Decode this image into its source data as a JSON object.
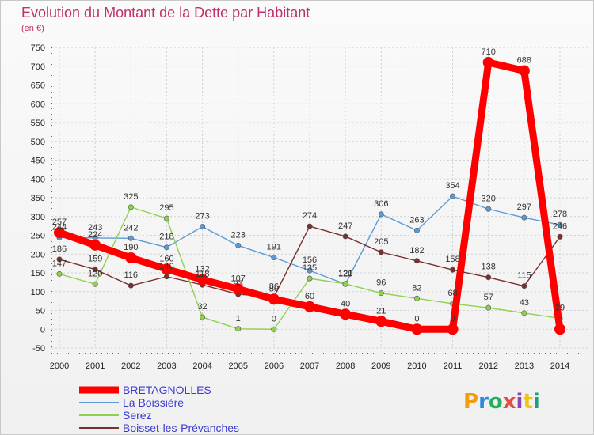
{
  "chart_data": {
    "type": "line",
    "title": "Evolution du Montant de la Dette par Habitant",
    "subtitle": "(en €)",
    "x": [
      2000,
      2001,
      2002,
      2003,
      2004,
      2005,
      2006,
      2007,
      2008,
      2009,
      2010,
      2011,
      2012,
      2013,
      2014
    ],
    "ylim": [
      -50,
      750
    ],
    "yticks": [
      -50,
      0,
      50,
      100,
      150,
      200,
      250,
      300,
      350,
      400,
      450,
      500,
      550,
      600,
      650,
      700,
      750
    ],
    "grid": true,
    "legend_position": "bottom-left",
    "series": [
      {
        "name": "BRETAGNOLLES",
        "color": "#ff0000",
        "values": [
          257,
          224,
          190,
          160,
          132,
          107,
          80,
          60,
          40,
          21,
          0,
          0,
          710,
          688,
          0
        ]
      },
      {
        "name": "La Boissière",
        "color": "#5b9bd5",
        "values": [
          244,
          243,
          242,
          218,
          273,
          223,
          191,
          156,
          120,
          306,
          263,
          354,
          320,
          297,
          278
        ]
      },
      {
        "name": "Serez",
        "color": "#8fd14f",
        "values": [
          147,
          120,
          325,
          295,
          32,
          1,
          0,
          135,
          121,
          96,
          82,
          68,
          57,
          43,
          29
        ]
      },
      {
        "name": "Boisset-les-Prévanches",
        "color": "#7a2e2e",
        "values": [
          186,
          159,
          116,
          140,
          118,
          93,
          86,
          274,
          247,
          205,
          182,
          158,
          138,
          115,
          246
        ]
      }
    ],
    "data_labels": [
      [
        257,
        224,
        190,
        160,
        132,
        107,
        80,
        60,
        40,
        21,
        0,
        0,
        710,
        688,
        null
      ],
      [
        244,
        243,
        242,
        218,
        273,
        223,
        191,
        156,
        120,
        306,
        263,
        354,
        320,
        297,
        278
      ],
      [
        147,
        120,
        325,
        295,
        32,
        1,
        0,
        135,
        121,
        96,
        82,
        68,
        57,
        43,
        29
      ],
      [
        186,
        159,
        116,
        140,
        118,
        93,
        86,
        274,
        247,
        205,
        182,
        158,
        138,
        115,
        246
      ]
    ]
  },
  "logo": {
    "text": "Proxiti"
  },
  "colors": {
    "title": "#c0306a",
    "grid": "#d0d0d0"
  }
}
